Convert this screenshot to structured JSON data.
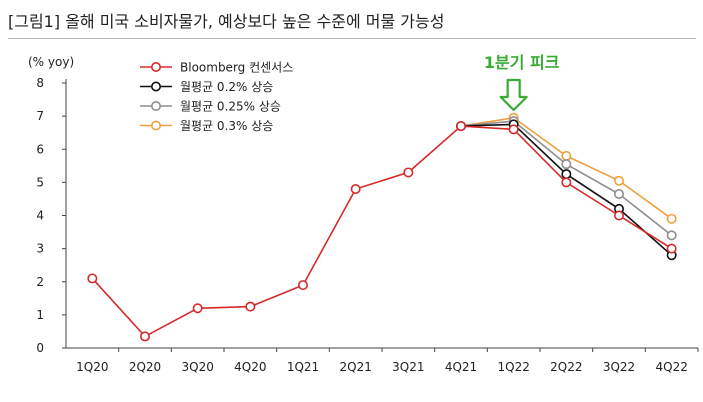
{
  "header": {
    "title": "[그림1]    올해 미국 소비자물가, 예상보다 높은 수준에 머물 가능성"
  },
  "chart_data": {
    "type": "line",
    "ylabel": "(% yoy)",
    "ylim": [
      0,
      8
    ],
    "yticks": [
      0,
      1,
      2,
      3,
      4,
      5,
      6,
      7,
      8
    ],
    "categories": [
      "1Q20",
      "2Q20",
      "3Q20",
      "4Q20",
      "1Q21",
      "2Q21",
      "3Q21",
      "4Q21",
      "1Q22",
      "2Q22",
      "3Q22",
      "4Q22"
    ],
    "annotation": {
      "text": "1분기 피크",
      "category": "1Q22",
      "color": "#3aaa35"
    },
    "legend_position": "top-left",
    "series": [
      {
        "name": "Bloomberg  컨센서스",
        "color": "#d62a2a",
        "values": [
          2.1,
          0.35,
          1.2,
          1.25,
          1.9,
          4.8,
          5.3,
          6.7,
          6.6,
          5.0,
          4.0,
          3.0
        ]
      },
      {
        "name": "월평균  0.2%  상승",
        "color": "#111111",
        "values": [
          null,
          null,
          null,
          null,
          null,
          null,
          null,
          6.7,
          6.75,
          5.25,
          4.2,
          2.8
        ]
      },
      {
        "name": "월평균  0.25%  상승",
        "color": "#8f8f8f",
        "values": [
          null,
          null,
          null,
          null,
          null,
          null,
          null,
          6.7,
          6.85,
          5.55,
          4.65,
          3.4
        ]
      },
      {
        "name": "월평균  0.3%  상승",
        "color": "#f0a040",
        "values": [
          null,
          null,
          null,
          null,
          null,
          null,
          null,
          6.7,
          6.95,
          5.8,
          5.05,
          3.9
        ]
      }
    ]
  }
}
